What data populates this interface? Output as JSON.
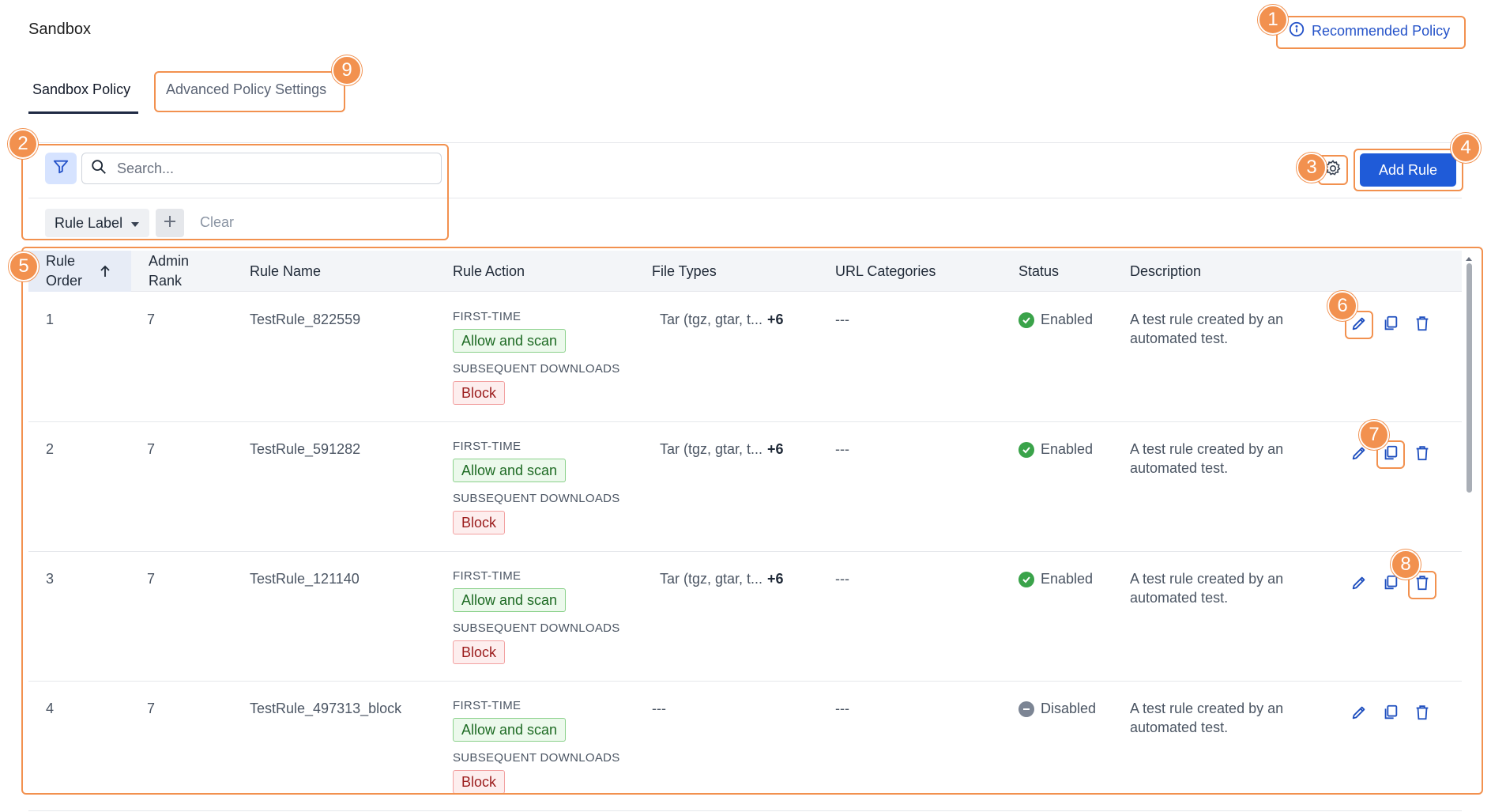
{
  "page": {
    "title": "Sandbox",
    "recommended_policy_label": "Recommended Policy"
  },
  "tabs": [
    {
      "label": "Sandbox Policy",
      "active": true
    },
    {
      "label": "Advanced Policy Settings",
      "active": false
    }
  ],
  "toolbar": {
    "search_placeholder": "Search...",
    "rule_label_filter": "Rule Label",
    "clear_label": "Clear",
    "add_rule_label": "Add Rule"
  },
  "table": {
    "headers": {
      "rule_order_line1": "Rule",
      "rule_order_line2": "Order",
      "admin_rank_line1": "Admin",
      "admin_rank_line2": "Rank",
      "rule_name": "Rule Name",
      "rule_action": "Rule Action",
      "file_types": "File Types",
      "url_categories": "URL Categories",
      "status": "Status",
      "description": "Description"
    },
    "action_labels": {
      "first_time": "FIRST-TIME",
      "subsequent": "SUBSEQUENT DOWNLOADS"
    },
    "rows": [
      {
        "order": "1",
        "rank": "7",
        "name": "TestRule_822559",
        "first_time": "Allow and scan",
        "subsequent": "Block",
        "file_types": "Tar (tgz, gtar, t...",
        "file_types_more": "+6",
        "url_categories": "---",
        "status": "Enabled",
        "description": "A test rule created by an automated test."
      },
      {
        "order": "2",
        "rank": "7",
        "name": "TestRule_591282",
        "first_time": "Allow and scan",
        "subsequent": "Block",
        "file_types": "Tar (tgz, gtar, t...",
        "file_types_more": "+6",
        "url_categories": "---",
        "status": "Enabled",
        "description": "A test rule created by an automated test."
      },
      {
        "order": "3",
        "rank": "7",
        "name": "TestRule_121140",
        "first_time": "Allow and scan",
        "subsequent": "Block",
        "file_types": "Tar (tgz, gtar, t...",
        "file_types_more": "+6",
        "url_categories": "---",
        "status": "Enabled",
        "description": "A test rule created by an automated test."
      },
      {
        "order": "4",
        "rank": "7",
        "name": "TestRule_497313_block",
        "first_time": "Allow and scan",
        "subsequent": "Block",
        "file_types": "---",
        "file_types_more": "",
        "url_categories": "---",
        "status": "Disabled",
        "description": "A test rule created by an automated test."
      }
    ]
  },
  "annotations": [
    "1",
    "2",
    "3",
    "4",
    "5",
    "6",
    "7",
    "8",
    "9"
  ],
  "colors": {
    "accent": "#1f5bd8",
    "annotation": "#f2914f",
    "enabled": "#3aa34a",
    "disabled": "#7c8594"
  }
}
